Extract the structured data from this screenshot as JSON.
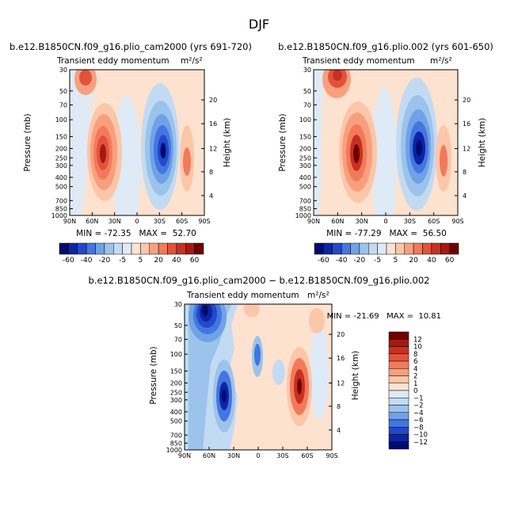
{
  "page_title": "DJF",
  "palette": {
    "pos": [
      "#fde2cf",
      "#fcc6a8",
      "#f8a07e",
      "#f27a5a",
      "#e2523d",
      "#c8311f",
      "#a51a10",
      "#6e0000"
    ],
    "neg": [
      "#deebf7",
      "#c2dbf2",
      "#9cc3ec",
      "#6fa2e6",
      "#4476e0",
      "#2249c9",
      "#0d24a6",
      "#020b6e"
    ]
  },
  "chart_data": [
    {
      "id": "p1",
      "type": "contour",
      "title": "b.e12.B1850CN.f09_g16.plio_cam2000 (yrs 691-720)",
      "subtitle": "Transient eddy momentum",
      "units": "m²/s²",
      "ylabel": "Pressure (mb)",
      "ylabel_right": "Height (km)",
      "x_ticks": [
        "90N",
        "60N",
        "30N",
        "0",
        "30S",
        "60S",
        "90S"
      ],
      "x_range": [
        90,
        -90
      ],
      "y_ticks": [
        "30",
        "50",
        "70",
        "100",
        "150",
        "200",
        "250",
        "300",
        "400",
        "500",
        "700",
        "850",
        "1000"
      ],
      "y_range": [
        1000,
        30
      ],
      "height_ticks": [
        "4",
        "8",
        "12",
        "16",
        "20"
      ],
      "minmax_text": "MIN = -72.35   MAX =  52.70",
      "min": -72.35,
      "max": 52.7,
      "levels": [
        "-60",
        "-40",
        "-20",
        "-5",
        "5",
        "20",
        "40",
        "60"
      ]
    },
    {
      "id": "p2",
      "type": "contour",
      "title": "b.e12.B1850CN.f09_g16.plio.002 (yrs 601-650)",
      "subtitle": "Transient eddy momentum",
      "units": "m²/s²",
      "ylabel": "Pressure (mb)",
      "ylabel_right": "Height (km)",
      "x_ticks": [
        "90N",
        "60N",
        "30N",
        "0",
        "30S",
        "60S",
        "90S"
      ],
      "x_range": [
        90,
        -90
      ],
      "y_ticks": [
        "30",
        "50",
        "70",
        "100",
        "150",
        "200",
        "250",
        "300",
        "400",
        "500",
        "700",
        "850",
        "1000"
      ],
      "y_range": [
        1000,
        30
      ],
      "height_ticks": [
        "4",
        "8",
        "12",
        "16",
        "20"
      ],
      "minmax_text": "MIN = -77.29   MAX =  56.50",
      "min": -77.29,
      "max": 56.5,
      "levels": [
        "-60",
        "-40",
        "-20",
        "-5",
        "5",
        "20",
        "40",
        "60"
      ]
    },
    {
      "id": "p3",
      "type": "contour",
      "title": "b.e12.B1850CN.f09_g16.plio_cam2000 − b.e12.B1850CN.f09_g16.plio.002",
      "subtitle": "Transient eddy momentum",
      "units": "m²/s²",
      "ylabel": "Pressure (mb)",
      "ylabel_right": "Height (km)",
      "x_ticks": [
        "90N",
        "60N",
        "30N",
        "0",
        "30S",
        "60S",
        "90S"
      ],
      "x_range": [
        90,
        -90
      ],
      "y_ticks": [
        "30",
        "50",
        "70",
        "100",
        "150",
        "200",
        "250",
        "300",
        "400",
        "500",
        "700",
        "850",
        "1000"
      ],
      "y_range": [
        1000,
        30
      ],
      "height_ticks": [
        "4",
        "8",
        "12",
        "16",
        "20"
      ],
      "minmax_text": "MIN = -21.69   MAX =  10.81",
      "min": -21.69,
      "max": 10.81,
      "levels": [
        "12",
        "10",
        "8",
        "6",
        "4",
        "2",
        "1",
        "0",
        "−1",
        "−2",
        "−4",
        "−6",
        "−8",
        "−10",
        "−12"
      ]
    }
  ]
}
